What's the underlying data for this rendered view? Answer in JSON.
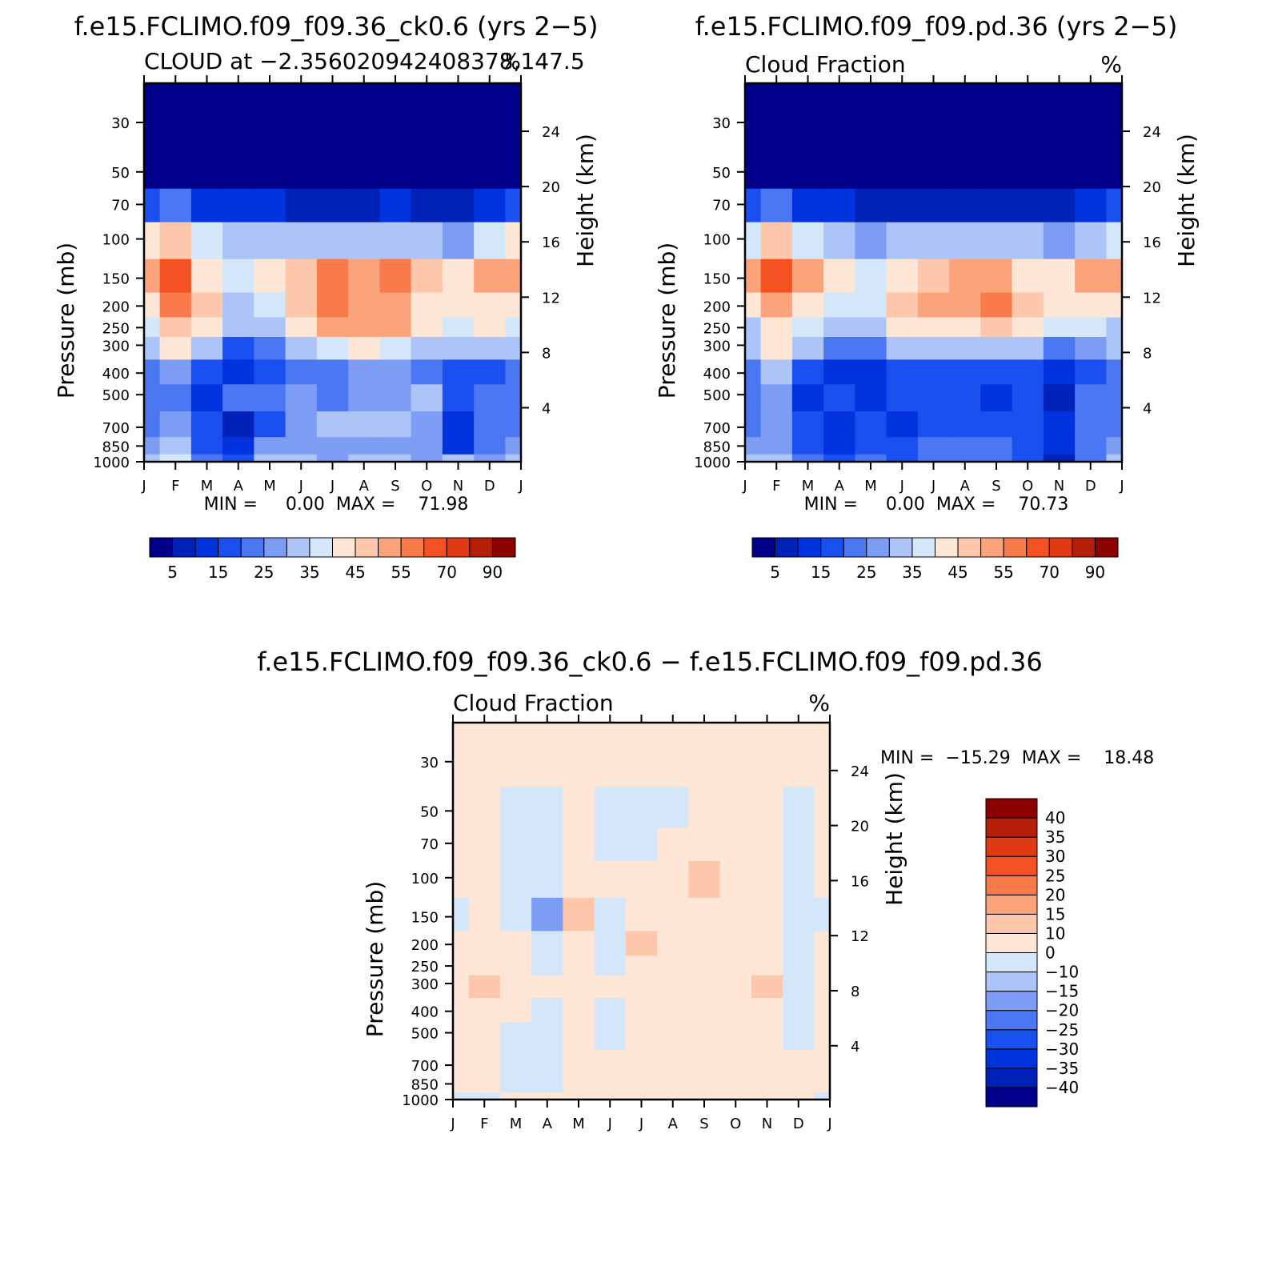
{
  "chart_data": [
    {
      "type": "heatmap",
      "id": "p1",
      "title": "f.e15.FCLIMO.f09_f09.36_ck0.6 (yrs 2−5)",
      "subtitle_left": "CLOUD at −2.356020942408378,147.5",
      "subtitle_right": "%",
      "ylabel": "Pressure (mb)",
      "ylabel_right": "Height (km)",
      "x_ticks": [
        "J",
        "F",
        "M",
        "A",
        "M",
        "J",
        "J",
        "A",
        "S",
        "O",
        "N",
        "D",
        "J"
      ],
      "pressure_levels": [
        1000,
        850,
        700,
        500,
        400,
        300,
        250,
        200,
        150,
        100,
        70,
        50,
        30
      ],
      "pressure_tick_labels": [
        "30",
        "50",
        "70",
        "100",
        "150",
        "200",
        "250",
        "300",
        "400",
        "500",
        "700",
        "850",
        "1000"
      ],
      "height_ticks": [
        "24",
        "20",
        "16",
        "12",
        "8",
        "4"
      ],
      "min_max_text": "MIN =     0.00  MAX =    71.98",
      "colorbar_labels": [
        "5",
        "15",
        "25",
        "35",
        "45",
        "55",
        "70",
        "90"
      ],
      "colorbar_colors": [
        "#00008a",
        "#0022b8",
        "#0033dd",
        "#1a4ff0",
        "#4b78f2",
        "#7d9df5",
        "#adc4f8",
        "#d4e6fa",
        "#fde6d6",
        "#fcc7aa",
        "#fba47c",
        "#f97b4c",
        "#f45222",
        "#e03a14",
        "#b51f0a",
        "#8b0000"
      ],
      "clevels": [
        0,
        5,
        10,
        15,
        20,
        25,
        30,
        35,
        40,
        45,
        50,
        55,
        60,
        70,
        80,
        90
      ],
      "values": [
        [
          30,
          35,
          20,
          18,
          30,
          30,
          28,
          30,
          30,
          28,
          30,
          26,
          30
        ],
        [
          28,
          32,
          18,
          10,
          26,
          26,
          28,
          28,
          28,
          26,
          14,
          24,
          28
        ],
        [
          24,
          26,
          16,
          6,
          18,
          26,
          34,
          32,
          30,
          28,
          14,
          20,
          24
        ],
        [
          20,
          24,
          14,
          22,
          22,
          26,
          24,
          26,
          28,
          30,
          18,
          22,
          20
        ],
        [
          24,
          28,
          18,
          12,
          16,
          20,
          24,
          26,
          26,
          24,
          16,
          18,
          24
        ],
        [
          32,
          44,
          32,
          18,
          20,
          30,
          36,
          40,
          38,
          32,
          30,
          32,
          32
        ],
        [
          36,
          48,
          40,
          30,
          34,
          42,
          52,
          50,
          50,
          42,
          38,
          40,
          36
        ],
        [
          40,
          56,
          46,
          34,
          38,
          48,
          56,
          54,
          54,
          44,
          40,
          44,
          40
        ],
        [
          52,
          62,
          44,
          38,
          42,
          46,
          56,
          54,
          58,
          48,
          42,
          52,
          52
        ],
        [
          40,
          48,
          36,
          30,
          32,
          30,
          32,
          30,
          32,
          30,
          28,
          36,
          40
        ],
        [
          18,
          20,
          14,
          10,
          10,
          8,
          8,
          8,
          10,
          8,
          6,
          14,
          18
        ],
        [
          0,
          0,
          0,
          0,
          0,
          0,
          0,
          0,
          0,
          0,
          0,
          0,
          0
        ],
        [
          0,
          0,
          0,
          0,
          0,
          0,
          0,
          0,
          0,
          0,
          0,
          0,
          0
        ]
      ]
    },
    {
      "type": "heatmap",
      "id": "p2",
      "title": "f.e15.FCLIMO.f09_f09.pd.36 (yrs 2−5)",
      "subtitle_left": "Cloud Fraction",
      "subtitle_right": "%",
      "ylabel": "Pressure (mb)",
      "ylabel_right": "Height (km)",
      "x_ticks": [
        "J",
        "F",
        "M",
        "A",
        "M",
        "J",
        "J",
        "A",
        "S",
        "O",
        "N",
        "D",
        "J"
      ],
      "pressure_levels": [
        1000,
        850,
        700,
        500,
        400,
        300,
        250,
        200,
        150,
        100,
        70,
        50,
        30
      ],
      "pressure_tick_labels": [
        "30",
        "50",
        "70",
        "100",
        "150",
        "200",
        "250",
        "300",
        "400",
        "500",
        "700",
        "850",
        "1000"
      ],
      "height_ticks": [
        "24",
        "20",
        "16",
        "12",
        "8",
        "4"
      ],
      "min_max_text": "MIN =     0.00  MAX =    70.73",
      "colorbar_labels": [
        "5",
        "15",
        "25",
        "35",
        "45",
        "55",
        "70",
        "90"
      ],
      "colorbar_colors": [
        "#00008a",
        "#0022b8",
        "#0033dd",
        "#1a4ff0",
        "#4b78f2",
        "#7d9df5",
        "#adc4f8",
        "#d4e6fa",
        "#fde6d6",
        "#fcc7aa",
        "#fba47c",
        "#f97b4c",
        "#f45222",
        "#e03a14",
        "#b51f0a",
        "#8b0000"
      ],
      "clevels": [
        0,
        5,
        10,
        15,
        20,
        25,
        30,
        35,
        40,
        45,
        50,
        55,
        60,
        70,
        80,
        90
      ],
      "values": [
        [
          30,
          30,
          20,
          16,
          20,
          18,
          20,
          20,
          22,
          18,
          8,
          24,
          30
        ],
        [
          28,
          28,
          18,
          14,
          18,
          18,
          20,
          20,
          20,
          18,
          10,
          22,
          28
        ],
        [
          24,
          26,
          16,
          14,
          16,
          14,
          16,
          16,
          18,
          16,
          12,
          20,
          24
        ],
        [
          22,
          26,
          14,
          16,
          10,
          16,
          16,
          16,
          14,
          16,
          8,
          22,
          22
        ],
        [
          24,
          30,
          18,
          14,
          14,
          16,
          18,
          18,
          16,
          16,
          14,
          18,
          24
        ],
        [
          30,
          40,
          30,
          20,
          20,
          30,
          34,
          34,
          34,
          30,
          24,
          28,
          30
        ],
        [
          34,
          44,
          36,
          32,
          32,
          42,
          44,
          44,
          46,
          40,
          36,
          38,
          34
        ],
        [
          40,
          52,
          44,
          36,
          36,
          48,
          50,
          50,
          58,
          46,
          40,
          42,
          40
        ],
        [
          52,
          62,
          52,
          40,
          38,
          44,
          48,
          50,
          54,
          44,
          42,
          54,
          52
        ],
        [
          38,
          46,
          38,
          30,
          28,
          30,
          30,
          30,
          32,
          30,
          26,
          34,
          38
        ],
        [
          18,
          20,
          14,
          10,
          8,
          6,
          6,
          6,
          8,
          6,
          6,
          14,
          18
        ],
        [
          0,
          0,
          0,
          0,
          0,
          0,
          0,
          0,
          0,
          0,
          0,
          0,
          0
        ],
        [
          0,
          0,
          0,
          0,
          0,
          0,
          0,
          0,
          0,
          0,
          0,
          0,
          0
        ]
      ]
    },
    {
      "type": "heatmap",
      "id": "p3",
      "title": "f.e15.FCLIMO.f09_f09.36_ck0.6 − f.e15.FCLIMO.f09_f09.pd.36",
      "subtitle_left": "Cloud Fraction",
      "subtitle_right": "%",
      "ylabel": "Pressure (mb)",
      "ylabel_right": "Height (km)",
      "x_ticks": [
        "J",
        "F",
        "M",
        "A",
        "M",
        "J",
        "J",
        "A",
        "S",
        "O",
        "N",
        "D",
        "J"
      ],
      "pressure_levels": [
        1000,
        850,
        700,
        500,
        400,
        300,
        250,
        200,
        150,
        100,
        70,
        50,
        30
      ],
      "pressure_tick_labels": [
        "30",
        "50",
        "70",
        "100",
        "150",
        "200",
        "250",
        "300",
        "400",
        "500",
        "700",
        "850",
        "1000"
      ],
      "height_ticks": [
        "24",
        "20",
        "16",
        "12",
        "8",
        "4"
      ],
      "min_max_text": "MIN =  −15.29  MAX =    18.48",
      "colorbar_labels": [
        "40",
        "35",
        "30",
        "25",
        "20",
        "15",
        "10",
        "0",
        "−10",
        "−15",
        "−20",
        "−25",
        "−30",
        "−35",
        "−40"
      ],
      "colorbar_colors": [
        "#00008a",
        "#0022b8",
        "#0033dd",
        "#1a4ff0",
        "#4b78f2",
        "#7d9df5",
        "#adc4f8",
        "#d4e6fa",
        "#fde6d6",
        "#fcc7aa",
        "#fba47c",
        "#f97b4c",
        "#f45222",
        "#e03a14",
        "#b51f0a",
        "#8b0000"
      ],
      "clevels": [
        -1000,
        -40,
        -35,
        -30,
        -25,
        -20,
        -15,
        -10,
        0,
        10,
        15,
        20,
        25,
        30,
        35,
        40
      ],
      "values": [
        [
          -2,
          -2,
          2,
          2,
          2,
          2,
          2,
          2,
          2,
          2,
          2,
          2,
          -2
        ],
        [
          2,
          2,
          -2,
          -2,
          2,
          2,
          2,
          2,
          2,
          2,
          2,
          2,
          2
        ],
        [
          2,
          2,
          -2,
          -2,
          2,
          2,
          2,
          2,
          2,
          2,
          2,
          2,
          2
        ],
        [
          2,
          2,
          -2,
          -2,
          2,
          -2,
          2,
          2,
          2,
          2,
          2,
          -2,
          2
        ],
        [
          2,
          2,
          2,
          -2,
          2,
          -2,
          2,
          2,
          2,
          2,
          2,
          -2,
          2
        ],
        [
          2,
          12,
          2,
          2,
          2,
          2,
          2,
          2,
          2,
          2,
          12,
          -2,
          2
        ],
        [
          2,
          6,
          2,
          -2,
          2,
          -2,
          6,
          6,
          2,
          2,
          2,
          -2,
          2
        ],
        [
          2,
          2,
          2,
          -2,
          2,
          -2,
          12,
          6,
          2,
          2,
          2,
          -2,
          2
        ],
        [
          -2,
          2,
          -2,
          -16,
          12,
          -2,
          6,
          2,
          2,
          2,
          2,
          -2,
          -2
        ],
        [
          2,
          2,
          -2,
          -2,
          2,
          2,
          2,
          2,
          12,
          2,
          2,
          -2,
          2
        ],
        [
          2,
          2,
          -2,
          -2,
          2,
          -2,
          -2,
          2,
          2,
          2,
          2,
          -2,
          2
        ],
        [
          2,
          2,
          -2,
          -2,
          2,
          -2,
          -2,
          -2,
          2,
          2,
          2,
          -2,
          2
        ],
        [
          2,
          2,
          2,
          2,
          2,
          2,
          2,
          2,
          2,
          2,
          2,
          2,
          2
        ]
      ]
    }
  ]
}
